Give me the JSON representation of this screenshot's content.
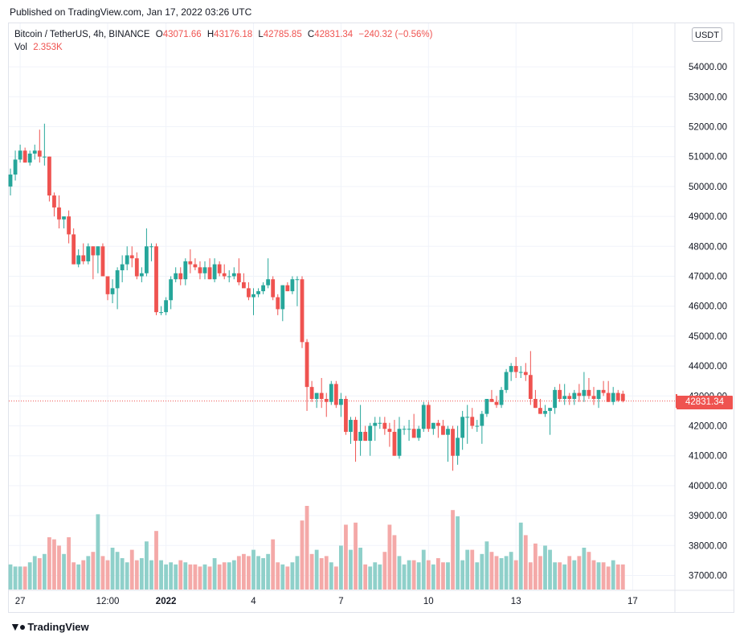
{
  "header": {
    "published": "Published on TradingView.com, Jan 17, 2022 03:26 UTC"
  },
  "legend": {
    "symbol": "Bitcoin / TetherUS, 4h, BINANCE",
    "o_label": "O",
    "o_value": "43071.66",
    "h_label": "H",
    "h_value": "43176.18",
    "l_label": "L",
    "l_value": "42785.85",
    "c_label": "C",
    "c_value": "42831.34",
    "change": "−240.32 (−0.56%)",
    "vol_label": "Vol",
    "vol_value": "2.353K"
  },
  "currency_button": "USDT",
  "last_price_label": "42831.34",
  "footer": {
    "brand": "TradingView",
    "logo_icon": "tradingview-logo-icon"
  },
  "colors": {
    "up": "#26a69a",
    "down": "#ef5350",
    "up_vol": "#8fd0ca",
    "down_vol": "#f4a9a8",
    "grid": "#f0f3fa"
  },
  "chart_data": {
    "type": "candlestick",
    "symbol": "Bitcoin / TetherUS",
    "interval": "4h",
    "exchange": "BINANCE",
    "y_ticks": [
      "37000.00",
      "38000.00",
      "39000.00",
      "40000.00",
      "41000.00",
      "42000.00",
      "43000.00",
      "44000.00",
      "45000.00",
      "46000.00",
      "47000.00",
      "48000.00",
      "49000.00",
      "50000.00",
      "51000.00",
      "52000.00",
      "53000.00",
      "54000.00"
    ],
    "x_ticks": [
      {
        "label": "27",
        "bold": false,
        "index": 2
      },
      {
        "label": "12:00",
        "bold": false,
        "index": 20
      },
      {
        "label": "2022",
        "bold": true,
        "index": 32
      },
      {
        "label": "4",
        "bold": false,
        "index": 50
      },
      {
        "label": "7",
        "bold": false,
        "index": 68
      },
      {
        "label": "10",
        "bold": false,
        "index": 86
      },
      {
        "label": "13",
        "bold": false,
        "index": 104
      },
      {
        "label": "17",
        "bold": false,
        "index": 128
      }
    ],
    "grid": true,
    "last_price": 42831.34,
    "ylim": [
      36700,
      55000
    ],
    "candles": [
      [
        50000,
        50600,
        49700,
        50400,
        1.2
      ],
      [
        50400,
        51200,
        50200,
        50900,
        1.1
      ],
      [
        50900,
        51400,
        50800,
        51200,
        1.1
      ],
      [
        51200,
        51300,
        50800,
        50800,
        1.1
      ],
      [
        50800,
        51200,
        50700,
        51100,
        1.3
      ],
      [
        51100,
        51400,
        50900,
        51200,
        1.6
      ],
      [
        51200,
        51900,
        50800,
        51000,
        1.5
      ],
      [
        51000,
        52100,
        50700,
        51000,
        1.7
      ],
      [
        51000,
        51000,
        49500,
        49700,
        2.5
      ],
      [
        49700,
        49800,
        49000,
        49300,
        2.4
      ],
      [
        49300,
        49700,
        48600,
        48900,
        2.1
      ],
      [
        48900,
        49000,
        48600,
        49000,
        1.7
      ],
      [
        49000,
        49200,
        48100,
        48400,
        2.5
      ],
      [
        48400,
        48600,
        47400,
        47400,
        1.3
      ],
      [
        47400,
        47900,
        47300,
        47700,
        1.2
      ],
      [
        47700,
        48100,
        47400,
        47500,
        1.4
      ],
      [
        47500,
        48100,
        47400,
        48000,
        1.6
      ],
      [
        48000,
        48000,
        46900,
        47700,
        1.8
      ],
      [
        47700,
        48000,
        47100,
        48000,
        3.6
      ],
      [
        48000,
        48100,
        47000,
        47000,
        1.6
      ],
      [
        47000,
        47000,
        46200,
        46400,
        1.4
      ],
      [
        46400,
        46900,
        46100,
        46600,
        2.0
      ],
      [
        46600,
        47300,
        45900,
        47200,
        1.8
      ],
      [
        47200,
        47700,
        46800,
        47400,
        1.5
      ],
      [
        47400,
        48000,
        47200,
        47700,
        1.3
      ],
      [
        47700,
        48000,
        47300,
        47600,
        1.9
      ],
      [
        47600,
        47800,
        46900,
        47000,
        1.4
      ],
      [
        47000,
        47300,
        46800,
        47100,
        1.5
      ],
      [
        47100,
        48600,
        47000,
        48000,
        2.3
      ],
      [
        48000,
        48100,
        47500,
        48000,
        1.4
      ],
      [
        48000,
        48100,
        45700,
        45800,
        2.8
      ],
      [
        45800,
        46000,
        45700,
        45800,
        1.4
      ],
      [
        45800,
        46300,
        45700,
        46200,
        1.2
      ],
      [
        46200,
        47000,
        45900,
        46900,
        1.3
      ],
      [
        46900,
        47300,
        46800,
        47100,
        1.2
      ],
      [
        47100,
        47300,
        46700,
        46900,
        1.4
      ],
      [
        46900,
        47600,
        46700,
        47500,
        1.3
      ],
      [
        47500,
        47900,
        47100,
        47400,
        1.2
      ],
      [
        47400,
        47600,
        47200,
        47300,
        1.2
      ],
      [
        47300,
        47500,
        46900,
        47100,
        1.1
      ],
      [
        47100,
        47500,
        46900,
        47300,
        1.2
      ],
      [
        47300,
        47600,
        46900,
        46900,
        1.1
      ],
      [
        46900,
        47600,
        46800,
        47400,
        1.5
      ],
      [
        47400,
        47500,
        47000,
        47100,
        1.2
      ],
      [
        47100,
        47400,
        46900,
        47000,
        1.3
      ],
      [
        47000,
        47200,
        46800,
        47000,
        1.3
      ],
      [
        47000,
        47300,
        46900,
        47100,
        1.4
      ],
      [
        47100,
        47600,
        46700,
        46800,
        1.6
      ],
      [
        46800,
        47100,
        46700,
        46600,
        1.7
      ],
      [
        46600,
        46800,
        46200,
        46300,
        1.6
      ],
      [
        46300,
        46600,
        45700,
        46400,
        1.9
      ],
      [
        46400,
        46600,
        46300,
        46500,
        1.6
      ],
      [
        46500,
        46800,
        46400,
        46700,
        1.5
      ],
      [
        46700,
        47600,
        46600,
        46900,
        1.7
      ],
      [
        46900,
        47000,
        46200,
        46300,
        2.4
      ],
      [
        46300,
        46400,
        45700,
        45900,
        1.3
      ],
      [
        45900,
        46700,
        45500,
        46700,
        1.2
      ],
      [
        46700,
        46800,
        46500,
        46500,
        1.1
      ],
      [
        46500,
        47000,
        46400,
        46900,
        1.3
      ],
      [
        46900,
        47000,
        46000,
        46900,
        1.6
      ],
      [
        46900,
        47000,
        44600,
        44800,
        3.3
      ],
      [
        44800,
        44900,
        42500,
        43300,
        4.0
      ],
      [
        43300,
        43500,
        42800,
        42900,
        1.7
      ],
      [
        42900,
        43100,
        42600,
        43100,
        1.9
      ],
      [
        43100,
        43600,
        42600,
        42900,
        1.5
      ],
      [
        42900,
        43100,
        42300,
        42800,
        1.6
      ],
      [
        42800,
        43500,
        42700,
        43400,
        1.3
      ],
      [
        43400,
        43500,
        42600,
        42700,
        1.1
      ],
      [
        42700,
        43100,
        42300,
        42900,
        2.1
      ],
      [
        42900,
        43000,
        41700,
        41800,
        3.1
      ],
      [
        41800,
        42300,
        41400,
        42200,
        1.9
      ],
      [
        42200,
        42300,
        40800,
        41500,
        3.2
      ],
      [
        41500,
        42700,
        41000,
        41800,
        2.0
      ],
      [
        41800,
        42000,
        41500,
        41500,
        1.2
      ],
      [
        41500,
        42100,
        41000,
        42000,
        1.1
      ],
      [
        42000,
        42300,
        41500,
        42100,
        1.3
      ],
      [
        42100,
        42300,
        41900,
        42100,
        1.2
      ],
      [
        42100,
        42300,
        41700,
        41900,
        1.8
      ],
      [
        41900,
        42100,
        41300,
        41800,
        3.1
      ],
      [
        41800,
        42200,
        41000,
        41000,
        2.6
      ],
      [
        41000,
        42300,
        40900,
        41900,
        1.6
      ],
      [
        41900,
        42000,
        41700,
        41900,
        1.2
      ],
      [
        41900,
        42200,
        41500,
        41900,
        1.4
      ],
      [
        41900,
        42400,
        41700,
        41600,
        1.4
      ],
      [
        41600,
        42000,
        41500,
        41900,
        1.3
      ],
      [
        41900,
        42800,
        41800,
        42700,
        1.9
      ],
      [
        42700,
        42800,
        41800,
        41900,
        1.4
      ],
      [
        41900,
        42100,
        41700,
        42100,
        1.2
      ],
      [
        42100,
        42200,
        41600,
        42000,
        1.5
      ],
      [
        42000,
        42200,
        41700,
        41700,
        1.3
      ],
      [
        41700,
        42000,
        40800,
        41900,
        1.3
      ],
      [
        41900,
        42000,
        40500,
        41000,
        3.8
      ],
      [
        41000,
        42000,
        40700,
        41600,
        3.5
      ],
      [
        41600,
        42500,
        41200,
        42300,
        1.4
      ],
      [
        42300,
        42700,
        41400,
        42300,
        1.9
      ],
      [
        42300,
        42600,
        41900,
        42000,
        1.9
      ],
      [
        42000,
        42200,
        41800,
        42000,
        1.3
      ],
      [
        42000,
        42500,
        41400,
        42400,
        1.7
      ],
      [
        42400,
        42900,
        42300,
        42900,
        2.3
      ],
      [
        42900,
        43200,
        42800,
        42800,
        1.8
      ],
      [
        42800,
        43000,
        42600,
        42700,
        1.6
      ],
      [
        42700,
        43300,
        42600,
        43200,
        1.5
      ],
      [
        43200,
        43900,
        43100,
        43800,
        1.6
      ],
      [
        43800,
        44100,
        43500,
        44000,
        1.8
      ],
      [
        44000,
        44300,
        43600,
        43800,
        1.4
      ],
      [
        43800,
        44000,
        43600,
        43800,
        3.2
      ],
      [
        43800,
        44100,
        43500,
        43700,
        2.6
      ],
      [
        43700,
        44500,
        42700,
        42900,
        1.3
      ],
      [
        42900,
        43200,
        42600,
        42600,
        2.2
      ],
      [
        42600,
        42900,
        42400,
        42400,
        1.6
      ],
      [
        42400,
        42700,
        42300,
        42500,
        2.1
      ],
      [
        42500,
        42600,
        41700,
        42600,
        1.9
      ],
      [
        42600,
        43300,
        42400,
        43200,
        1.3
      ],
      [
        43200,
        43400,
        42800,
        42900,
        1.3
      ],
      [
        42900,
        43400,
        42700,
        43000,
        1.2
      ],
      [
        43000,
        43100,
        42700,
        42900,
        1.6
      ],
      [
        42900,
        43200,
        42700,
        43100,
        1.4
      ],
      [
        43100,
        43400,
        42800,
        43000,
        1.6
      ],
      [
        43000,
        43800,
        42800,
        43200,
        2.0
      ],
      [
        43200,
        43600,
        42900,
        43000,
        1.8
      ],
      [
        43000,
        43300,
        42700,
        42900,
        1.4
      ],
      [
        42900,
        43200,
        42600,
        43200,
        1.3
      ],
      [
        43200,
        43500,
        43000,
        43100,
        1.3
      ],
      [
        43100,
        43500,
        42800,
        42800,
        1.1
      ],
      [
        42800,
        43300,
        42700,
        43100,
        1.4
      ],
      [
        43100,
        43200,
        42800,
        42850,
        1.2
      ],
      [
        43071.66,
        43176.18,
        42785.85,
        42831.34,
        1.2
      ]
    ]
  }
}
